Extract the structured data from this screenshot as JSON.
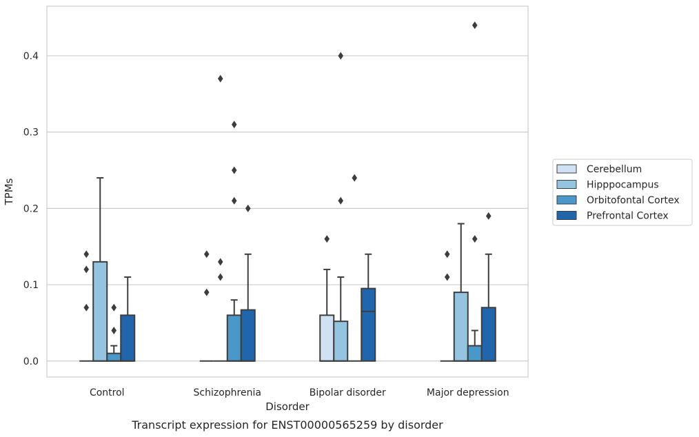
{
  "chart_data": {
    "type": "box",
    "caption": "Transcript expression for ENST00000565259 by disorder",
    "xlabel": "Disorder",
    "ylabel": "TPMs",
    "ylim": [
      -0.021,
      0.465
    ],
    "yticks": [
      "0.0",
      "0.1",
      "0.2",
      "0.3",
      "0.4"
    ],
    "categories": [
      "Control",
      "Schizophrenia",
      "Bipolar disorder",
      "Major depression"
    ],
    "grid": true,
    "legend_position": "right",
    "series": [
      {
        "name": "Cerebellum",
        "color": "#cfe1f2",
        "boxes": [
          {
            "q1": 0,
            "median": 0,
            "q3": 0,
            "whisker_low": 0,
            "whisker_high": 0,
            "outliers": [
              0.14,
              0.12,
              0.07
            ]
          },
          {
            "q1": 0,
            "median": 0,
            "q3": 0,
            "whisker_low": 0,
            "whisker_high": 0,
            "outliers": [
              0.14,
              0.09
            ]
          },
          {
            "q1": 0,
            "median": 0,
            "q3": 0.06,
            "whisker_low": 0,
            "whisker_high": 0.12,
            "outliers": [
              0.16
            ]
          },
          {
            "q1": 0,
            "median": 0,
            "q3": 0,
            "whisker_low": 0,
            "whisker_high": 0,
            "outliers": [
              0.14,
              0.11
            ]
          }
        ]
      },
      {
        "name": "Hipppocampus",
        "color": "#94c4df",
        "boxes": [
          {
            "q1": 0,
            "median": 0,
            "q3": 0.13,
            "whisker_low": 0,
            "whisker_high": 0.24,
            "outliers": []
          },
          {
            "q1": 0,
            "median": 0,
            "q3": 0,
            "whisker_low": 0,
            "whisker_high": 0,
            "outliers": [
              0.37,
              0.13,
              0.11
            ]
          },
          {
            "q1": 0,
            "median": 0,
            "q3": 0.052,
            "whisker_low": 0,
            "whisker_high": 0.11,
            "outliers": [
              0.4,
              0.21
            ]
          },
          {
            "q1": 0,
            "median": 0,
            "q3": 0.09,
            "whisker_low": 0,
            "whisker_high": 0.18,
            "outliers": []
          }
        ]
      },
      {
        "name": "Orbitofontal Cortex",
        "color": "#4a98c9",
        "boxes": [
          {
            "q1": 0,
            "median": 0,
            "q3": 0.01,
            "whisker_low": 0,
            "whisker_high": 0.02,
            "outliers": [
              0.07,
              0.04
            ]
          },
          {
            "q1": 0,
            "median": 0,
            "q3": 0.06,
            "whisker_low": 0,
            "whisker_high": 0.08,
            "outliers": [
              0.31,
              0.25,
              0.21
            ]
          },
          {
            "q1": 0,
            "median": 0,
            "q3": 0,
            "whisker_low": 0,
            "whisker_high": 0,
            "outliers": [
              0.24
            ]
          },
          {
            "q1": 0,
            "median": 0,
            "q3": 0.02,
            "whisker_low": 0,
            "whisker_high": 0.04,
            "outliers": [
              0.44,
              0.16
            ]
          }
        ]
      },
      {
        "name": "Prefrontal Cortex",
        "color": "#2166ac",
        "boxes": [
          {
            "q1": 0,
            "median": 0,
            "q3": 0.06,
            "whisker_low": 0,
            "whisker_high": 0.11,
            "outliers": []
          },
          {
            "q1": 0,
            "median": 0,
            "q3": 0.067,
            "whisker_low": 0,
            "whisker_high": 0.14,
            "outliers": [
              0.2
            ]
          },
          {
            "q1": 0,
            "median": 0.065,
            "q3": 0.095,
            "whisker_low": 0,
            "whisker_high": 0.14,
            "outliers": []
          },
          {
            "q1": 0,
            "median": 0,
            "q3": 0.07,
            "whisker_low": 0,
            "whisker_high": 0.14,
            "outliers": [
              0.19
            ]
          }
        ]
      }
    ]
  }
}
